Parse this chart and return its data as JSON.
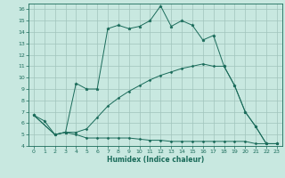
{
  "xlabel": "Humidex (Indice chaleur)",
  "bg_color": "#c8e8e0",
  "grid_color": "#a0c4bc",
  "line_color": "#1a6b5a",
  "spine_color": "#1a6b5a",
  "xlim": [
    -0.5,
    23.5
  ],
  "ylim": [
    4,
    16.5
  ],
  "xticks": [
    0,
    1,
    2,
    3,
    4,
    5,
    6,
    7,
    8,
    9,
    10,
    11,
    12,
    13,
    14,
    15,
    16,
    17,
    18,
    19,
    20,
    21,
    22,
    23
  ],
  "yticks": [
    4,
    5,
    6,
    7,
    8,
    9,
    10,
    11,
    12,
    13,
    14,
    15,
    16
  ],
  "line1_x": [
    0,
    1,
    2,
    3,
    4,
    5,
    6,
    7,
    8,
    9,
    10,
    11,
    12,
    13,
    14,
    15,
    16,
    17,
    18,
    19,
    20,
    21,
    22,
    23
  ],
  "line1_y": [
    6.7,
    6.2,
    5.0,
    5.2,
    9.5,
    9.0,
    9.0,
    14.3,
    14.6,
    14.3,
    14.5,
    15.0,
    16.3,
    14.5,
    15.0,
    14.6,
    13.3,
    13.7,
    11.0,
    9.3,
    7.0,
    5.7,
    4.2,
    4.2
  ],
  "line2_x": [
    0,
    2,
    3,
    4,
    5,
    6,
    7,
    8,
    9,
    10,
    11,
    12,
    13,
    14,
    15,
    16,
    17,
    18,
    19,
    20,
    21,
    22,
    23
  ],
  "line2_y": [
    6.7,
    5.0,
    5.2,
    5.2,
    5.5,
    6.5,
    7.5,
    8.2,
    8.8,
    9.3,
    9.8,
    10.2,
    10.5,
    10.8,
    11.0,
    11.2,
    11.0,
    11.0,
    9.3,
    7.0,
    5.7,
    4.2,
    4.2
  ],
  "line3_x": [
    0,
    2,
    3,
    4,
    5,
    6,
    7,
    8,
    9,
    10,
    11,
    12,
    13,
    14,
    15,
    16,
    17,
    18,
    19,
    20,
    21,
    22,
    23
  ],
  "line3_y": [
    6.7,
    5.0,
    5.2,
    5.0,
    4.7,
    4.7,
    4.7,
    4.7,
    4.7,
    4.6,
    4.5,
    4.5,
    4.4,
    4.4,
    4.4,
    4.4,
    4.4,
    4.4,
    4.4,
    4.4,
    4.2,
    4.2,
    4.2
  ]
}
